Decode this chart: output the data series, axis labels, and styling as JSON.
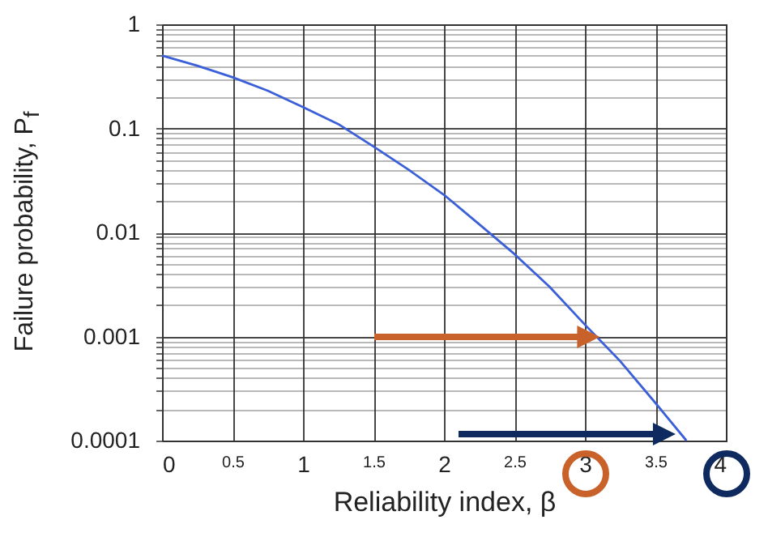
{
  "chart_data": {
    "type": "line",
    "xlabel": "Reliability index, β",
    "ylabel": "Failure probability, P$_{f}$",
    "x": [
      0,
      0.25,
      0.5,
      0.75,
      1,
      1.25,
      1.5,
      1.75,
      2,
      2.25,
      2.5,
      2.75,
      3,
      3.25,
      3.5,
      3.72
    ],
    "series": [
      {
        "color": "#3b5fd9",
        "values": [
          0.5,
          0.4,
          0.31,
          0.23,
          0.16,
          0.11,
          0.067,
          0.04,
          0.023,
          0.012,
          0.0062,
          0.003,
          0.0013,
          0.00058,
          0.00023,
          0.0001
        ]
      }
    ],
    "xlim": [
      0,
      4
    ],
    "xticks": [
      0,
      0.5,
      1,
      1.5,
      2,
      2.5,
      3,
      3.5,
      4
    ],
    "ylim": [
      0.0001,
      1
    ],
    "log": "y",
    "yticks": [
      0.0001,
      {
        "value": 0.0002,
        "label": null
      },
      {
        "value": 0.0003,
        "label": null
      },
      {
        "value": 0.0004,
        "label": null
      },
      {
        "value": 0.0005,
        "label": null
      },
      {
        "value": 0.0006,
        "label": null
      },
      {
        "value": 0.0007,
        "label": null
      },
      {
        "value": 0.0008,
        "label": null
      },
      {
        "value": 0.0009,
        "label": null
      },
      0.001,
      {
        "value": 0.002,
        "label": null
      },
      {
        "value": 0.003,
        "label": null
      },
      {
        "value": 0.004,
        "label": null
      },
      {
        "value": 0.005,
        "label": null
      },
      {
        "value": 0.006,
        "label": null
      },
      {
        "value": 0.007,
        "label": null
      },
      {
        "value": 0.008,
        "label": null
      },
      {
        "value": 0.009,
        "label": null
      },
      0.01,
      {
        "value": 0.02,
        "label": null
      },
      {
        "value": 0.03,
        "label": null
      },
      {
        "value": 0.04,
        "label": null
      },
      {
        "value": 0.05,
        "label": null
      },
      {
        "value": 0.06,
        "label": null
      },
      {
        "value": 0.07,
        "label": null
      },
      {
        "value": 0.08,
        "label": null
      },
      {
        "value": 0.09,
        "label": null
      },
      0.1,
      {
        "value": 0.2,
        "label": null
      },
      {
        "value": 0.3,
        "label": null
      },
      {
        "value": 0.4,
        "label": null
      },
      {
        "value": 0.5,
        "label": null
      },
      {
        "value": 0.6,
        "label": null
      },
      {
        "value": 0.7,
        "label": null
      },
      {
        "value": 0.8,
        "label": null
      },
      {
        "value": 0.9,
        "label": null
      },
      1
    ],
    "grid": true,
    "marker": "none",
    "line_style": "solid"
  }
}
